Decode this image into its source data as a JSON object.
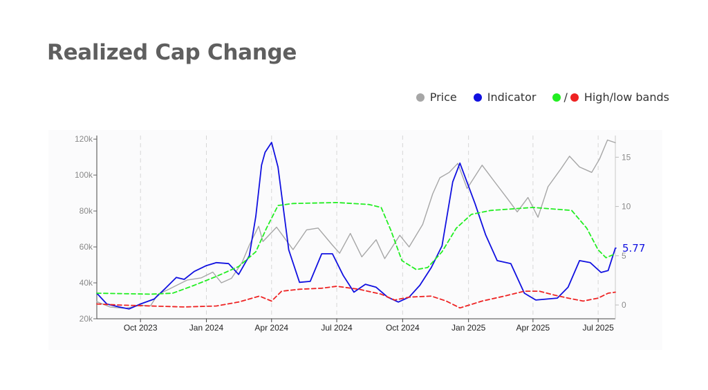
{
  "title": "Realized Cap Change",
  "legend": {
    "price": {
      "label": "Price",
      "color": "#a6a6a6"
    },
    "indicator": {
      "label": "Indicator",
      "color": "#1010e0"
    },
    "bands": {
      "label": "High/low bands",
      "high_color": "#22ee22",
      "low_color": "#ee2222",
      "separator": "/"
    }
  },
  "chart_data": {
    "type": "line",
    "title": "Realized Cap Change",
    "x_range": [
      "2023-08-01",
      "2025-07-25"
    ],
    "x_ticks": [
      {
        "label": "Oct 2023",
        "date": "2023-10-01"
      },
      {
        "label": "Jan 2024",
        "date": "2024-01-01"
      },
      {
        "label": "Apr 2024",
        "date": "2024-04-01"
      },
      {
        "label": "Jul 2024",
        "date": "2024-07-01"
      },
      {
        "label": "Oct 2024",
        "date": "2024-10-01"
      },
      {
        "label": "Jan 2025",
        "date": "2025-01-01"
      },
      {
        "label": "Apr 2025",
        "date": "2025-04-01"
      },
      {
        "label": "Jul 2025",
        "date": "2025-07-01"
      }
    ],
    "y_left": {
      "ticks": [
        20000,
        40000,
        60000,
        80000,
        100000,
        120000
      ],
      "tick_labels": [
        "20k",
        "40k",
        "60k",
        "80k",
        "100k",
        "120k"
      ],
      "range": [
        20000,
        122000
      ]
    },
    "y_right": {
      "ticks": [
        0,
        5,
        10,
        15
      ],
      "tick_labels": [
        "0",
        "5",
        "10",
        "15"
      ],
      "range": [
        -1.4,
        17.2
      ]
    },
    "grid": "vertical dashed",
    "last_value_label": "5.77",
    "series": [
      {
        "name": "Price",
        "axis": "left",
        "color": "#a6a6a6",
        "style": "solid",
        "points": [
          [
            "2023-08-01",
            29500
          ],
          [
            "2023-08-20",
            26500
          ],
          [
            "2023-09-10",
            25800
          ],
          [
            "2023-10-01",
            27500
          ],
          [
            "2023-10-15",
            27200
          ],
          [
            "2023-10-25",
            33500
          ],
          [
            "2023-11-10",
            36500
          ],
          [
            "2023-12-05",
            41500
          ],
          [
            "2023-12-25",
            42800
          ],
          [
            "2024-01-10",
            46000
          ],
          [
            "2024-01-22",
            40000
          ],
          [
            "2024-02-05",
            42500
          ],
          [
            "2024-02-20",
            51500
          ],
          [
            "2024-03-01",
            61000
          ],
          [
            "2024-03-14",
            71500
          ],
          [
            "2024-03-20",
            63000
          ],
          [
            "2024-04-08",
            71000
          ],
          [
            "2024-04-20",
            64500
          ],
          [
            "2024-05-01",
            58500
          ],
          [
            "2024-05-20",
            69500
          ],
          [
            "2024-06-05",
            70500
          ],
          [
            "2024-06-25",
            61000
          ],
          [
            "2024-07-05",
            56500
          ],
          [
            "2024-07-20",
            67500
          ],
          [
            "2024-08-05",
            54500
          ],
          [
            "2024-08-25",
            64000
          ],
          [
            "2024-09-06",
            53500
          ],
          [
            "2024-09-27",
            66500
          ],
          [
            "2024-10-10",
            60000
          ],
          [
            "2024-10-29",
            72500
          ],
          [
            "2024-11-12",
            89500
          ],
          [
            "2024-11-22",
            98500
          ],
          [
            "2024-12-05",
            101500
          ],
          [
            "2024-12-17",
            106500
          ],
          [
            "2024-12-30",
            92500
          ],
          [
            "2025-01-20",
            105500
          ],
          [
            "2025-02-05",
            97000
          ],
          [
            "2025-02-25",
            86500
          ],
          [
            "2025-03-10",
            79500
          ],
          [
            "2025-03-25",
            87500
          ],
          [
            "2025-04-08",
            76500
          ],
          [
            "2025-04-22",
            93500
          ],
          [
            "2025-05-10",
            103500
          ],
          [
            "2025-05-22",
            110500
          ],
          [
            "2025-06-05",
            104500
          ],
          [
            "2025-06-22",
            101500
          ],
          [
            "2025-07-03",
            109000
          ],
          [
            "2025-07-14",
            119500
          ],
          [
            "2025-07-25",
            118000
          ]
        ]
      },
      {
        "name": "Indicator",
        "axis": "right",
        "color": "#1010e0",
        "style": "solid",
        "points": [
          [
            "2023-08-01",
            1.2
          ],
          [
            "2023-08-15",
            0.1
          ],
          [
            "2023-09-01",
            -0.2
          ],
          [
            "2023-09-15",
            -0.4
          ],
          [
            "2023-10-01",
            0.1
          ],
          [
            "2023-10-20",
            0.6
          ],
          [
            "2023-11-05",
            1.7
          ],
          [
            "2023-11-20",
            2.8
          ],
          [
            "2023-12-01",
            2.6
          ],
          [
            "2023-12-15",
            3.4
          ],
          [
            "2024-01-01",
            4.0
          ],
          [
            "2024-01-15",
            4.3
          ],
          [
            "2024-02-01",
            4.2
          ],
          [
            "2024-02-15",
            3.1
          ],
          [
            "2024-03-01",
            5.0
          ],
          [
            "2024-03-10",
            9.0
          ],
          [
            "2024-03-18",
            14.2
          ],
          [
            "2024-03-23",
            15.5
          ],
          [
            "2024-04-01",
            16.5
          ],
          [
            "2024-04-10",
            14.0
          ],
          [
            "2024-04-25",
            5.6
          ],
          [
            "2024-05-10",
            2.3
          ],
          [
            "2024-05-25",
            2.4
          ],
          [
            "2024-06-10",
            5.2
          ],
          [
            "2024-06-25",
            5.2
          ],
          [
            "2024-07-10",
            3.0
          ],
          [
            "2024-07-25",
            1.3
          ],
          [
            "2024-08-10",
            2.1
          ],
          [
            "2024-08-25",
            1.8
          ],
          [
            "2024-09-10",
            0.8
          ],
          [
            "2024-09-25",
            0.3
          ],
          [
            "2024-10-10",
            0.8
          ],
          [
            "2024-10-25",
            2.0
          ],
          [
            "2024-11-10",
            3.8
          ],
          [
            "2024-11-25",
            6.0
          ],
          [
            "2024-12-10",
            12.5
          ],
          [
            "2024-12-20",
            14.4
          ],
          [
            "2025-01-10",
            10.3
          ],
          [
            "2025-01-25",
            7.1
          ],
          [
            "2025-02-10",
            4.5
          ],
          [
            "2025-03-01",
            4.2
          ],
          [
            "2025-03-20",
            1.2
          ],
          [
            "2025-04-05",
            0.5
          ],
          [
            "2025-04-20",
            0.6
          ],
          [
            "2025-05-05",
            0.7
          ],
          [
            "2025-05-20",
            1.8
          ],
          [
            "2025-06-05",
            4.5
          ],
          [
            "2025-06-20",
            4.3
          ],
          [
            "2025-07-05",
            3.3
          ],
          [
            "2025-07-15",
            3.5
          ],
          [
            "2025-07-25",
            5.77
          ]
        ]
      },
      {
        "name": "High band",
        "axis": "right",
        "color": "#22ee22",
        "style": "dashed",
        "points": [
          [
            "2023-08-01",
            1.2
          ],
          [
            "2023-10-15",
            1.1
          ],
          [
            "2023-11-15",
            1.2
          ],
          [
            "2023-12-15",
            2.0
          ],
          [
            "2024-01-15",
            2.9
          ],
          [
            "2024-02-15",
            3.9
          ],
          [
            "2024-03-10",
            5.4
          ],
          [
            "2024-03-25",
            7.8
          ],
          [
            "2024-04-10",
            10.1
          ],
          [
            "2024-05-01",
            10.3
          ],
          [
            "2024-07-01",
            10.4
          ],
          [
            "2024-08-15",
            10.2
          ],
          [
            "2024-09-01",
            9.9
          ],
          [
            "2024-09-15",
            7.5
          ],
          [
            "2024-09-30",
            4.5
          ],
          [
            "2024-10-20",
            3.6
          ],
          [
            "2024-11-05",
            3.8
          ],
          [
            "2024-11-25",
            5.4
          ],
          [
            "2024-12-15",
            7.8
          ],
          [
            "2025-01-05",
            9.2
          ],
          [
            "2025-02-01",
            9.6
          ],
          [
            "2025-04-01",
            9.9
          ],
          [
            "2025-05-25",
            9.6
          ],
          [
            "2025-06-15",
            7.8
          ],
          [
            "2025-07-01",
            5.6
          ],
          [
            "2025-07-12",
            4.8
          ],
          [
            "2025-07-25",
            5.2
          ]
        ]
      },
      {
        "name": "Low band",
        "axis": "right",
        "color": "#ee2222",
        "style": "dashed",
        "points": [
          [
            "2023-08-01",
            0.1
          ],
          [
            "2023-09-01",
            0.0
          ],
          [
            "2023-10-15",
            -0.1
          ],
          [
            "2023-12-01",
            -0.2
          ],
          [
            "2024-01-15",
            -0.1
          ],
          [
            "2024-02-15",
            0.3
          ],
          [
            "2024-03-15",
            0.9
          ],
          [
            "2024-04-01",
            0.4
          ],
          [
            "2024-04-15",
            1.4
          ],
          [
            "2024-05-10",
            1.6
          ],
          [
            "2024-06-10",
            1.7
          ],
          [
            "2024-07-01",
            1.9
          ],
          [
            "2024-08-01",
            1.6
          ],
          [
            "2024-09-01",
            1.1
          ],
          [
            "2024-09-20",
            0.5
          ],
          [
            "2024-10-10",
            0.8
          ],
          [
            "2024-11-10",
            0.9
          ],
          [
            "2024-12-01",
            0.4
          ],
          [
            "2024-12-20",
            -0.3
          ],
          [
            "2025-01-20",
            0.4
          ],
          [
            "2025-02-20",
            0.9
          ],
          [
            "2025-03-20",
            1.4
          ],
          [
            "2025-04-10",
            1.4
          ],
          [
            "2025-05-01",
            1.0
          ],
          [
            "2025-05-20",
            0.7
          ],
          [
            "2025-06-10",
            0.4
          ],
          [
            "2025-07-01",
            0.7
          ],
          [
            "2025-07-15",
            1.2
          ],
          [
            "2025-07-25",
            1.3
          ]
        ]
      }
    ]
  }
}
